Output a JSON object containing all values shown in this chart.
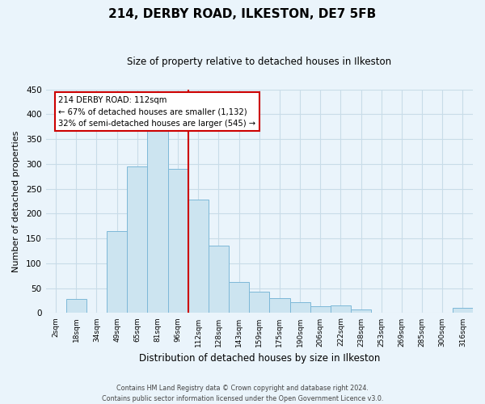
{
  "title": "214, DERBY ROAD, ILKESTON, DE7 5FB",
  "subtitle": "Size of property relative to detached houses in Ilkeston",
  "xlabel": "Distribution of detached houses by size in Ilkeston",
  "ylabel": "Number of detached properties",
  "bin_labels": [
    "2sqm",
    "18sqm",
    "34sqm",
    "49sqm",
    "65sqm",
    "81sqm",
    "96sqm",
    "112sqm",
    "128sqm",
    "143sqm",
    "159sqm",
    "175sqm",
    "190sqm",
    "206sqm",
    "222sqm",
    "238sqm",
    "253sqm",
    "269sqm",
    "285sqm",
    "300sqm",
    "316sqm"
  ],
  "bar_heights": [
    0,
    28,
    0,
    165,
    295,
    370,
    290,
    228,
    135,
    62,
    43,
    30,
    22,
    14,
    15,
    8,
    0,
    0,
    0,
    0,
    10
  ],
  "bar_color": "#cce4f0",
  "bar_edge_color": "#7db8d8",
  "highlight_line_color": "#cc0000",
  "annotation_title": "214 DERBY ROAD: 112sqm",
  "annotation_line1": "← 67% of detached houses are smaller (1,132)",
  "annotation_line2": "32% of semi-detached houses are larger (545) →",
  "annotation_box_color": "#ffffff",
  "annotation_box_edge_color": "#cc0000",
  "ylim": [
    0,
    450
  ],
  "yticks": [
    0,
    50,
    100,
    150,
    200,
    250,
    300,
    350,
    400,
    450
  ],
  "footer_line1": "Contains HM Land Registry data © Crown copyright and database right 2024.",
  "footer_line2": "Contains public sector information licensed under the Open Government Licence v3.0.",
  "background_color": "#eaf4fb",
  "grid_color": "#c8dce8",
  "plot_bg_color": "#eaf4fb"
}
